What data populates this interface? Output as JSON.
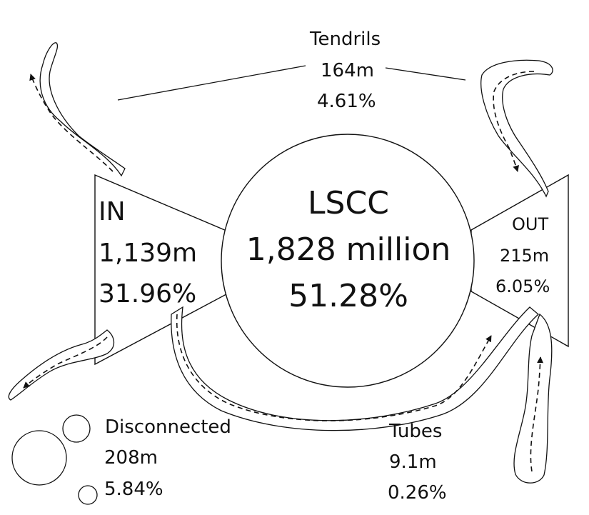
{
  "lscc": {
    "name": "LSCC",
    "size": "1,828 million",
    "percent": "51.28%"
  },
  "in": {
    "name": "IN",
    "size": "1,139m",
    "percent": "31.96%"
  },
  "out": {
    "name": "OUT",
    "size": "215m",
    "percent": "6.05%"
  },
  "tendrils": {
    "name": "Tendrils",
    "size": "164m",
    "percent": "4.61%"
  },
  "tubes": {
    "name": "Tubes",
    "size": "9.1m",
    "percent": "0.26%"
  },
  "disconnected": {
    "name": "Disconnected",
    "size": "208m",
    "percent": "5.84%"
  }
}
